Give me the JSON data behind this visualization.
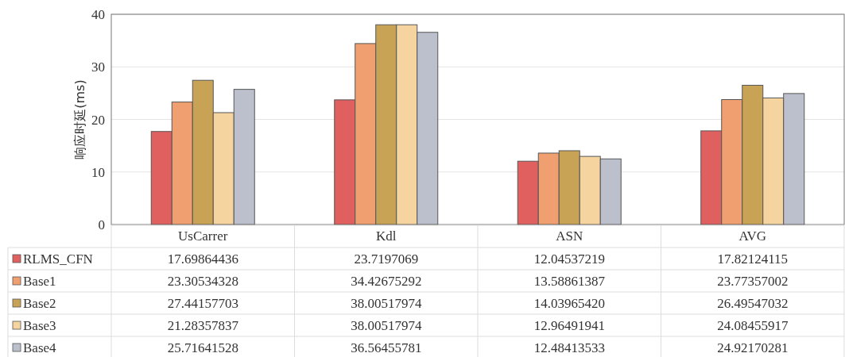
{
  "chart_data": {
    "type": "bar",
    "ylabel": "响应时延(ms)",
    "categories": [
      "UsCarrer",
      "Kdl",
      "ASN",
      "AVG"
    ],
    "ylim": [
      0,
      40
    ],
    "yticks": [
      0,
      10,
      20,
      30,
      40
    ],
    "grid": "y",
    "legend": "bottom",
    "series": [
      {
        "name": "RLMS_CFN",
        "color": "#e06060",
        "values": [
          17.69864436,
          23.7197069,
          12.04537219,
          17.82124115
        ],
        "value_labels": [
          "17.69864436",
          "23.7197069",
          "12.04537219",
          "17.82124115"
        ]
      },
      {
        "name": "Base1",
        "color": "#f0a070",
        "values": [
          23.30534328,
          34.42675292,
          13.58861387,
          23.77357002
        ],
        "value_labels": [
          "23.30534328",
          "34.42675292",
          "13.58861387",
          "23.77357002"
        ]
      },
      {
        "name": "Base2",
        "color": "#c9a355",
        "values": [
          27.44157703,
          38.00517974,
          14.0396542,
          26.49547032
        ],
        "value_labels": [
          "27.44157703",
          "38.00517974",
          "14.03965420",
          "26.49547032"
        ]
      },
      {
        "name": "Base3",
        "color": "#f5d4a0",
        "values": [
          21.28357837,
          38.00517974,
          12.96491941,
          24.08455917
        ],
        "value_labels": [
          "21.28357837",
          "38.00517974",
          "12.96491941",
          "24.08455917"
        ]
      },
      {
        "name": "Base4",
        "color": "#bcc0cc",
        "values": [
          25.71641528,
          36.56455781,
          12.48413533,
          24.92170281
        ],
        "value_labels": [
          "25.71641528",
          "36.56455781",
          "12.48413533",
          "24.92170281"
        ]
      }
    ]
  }
}
